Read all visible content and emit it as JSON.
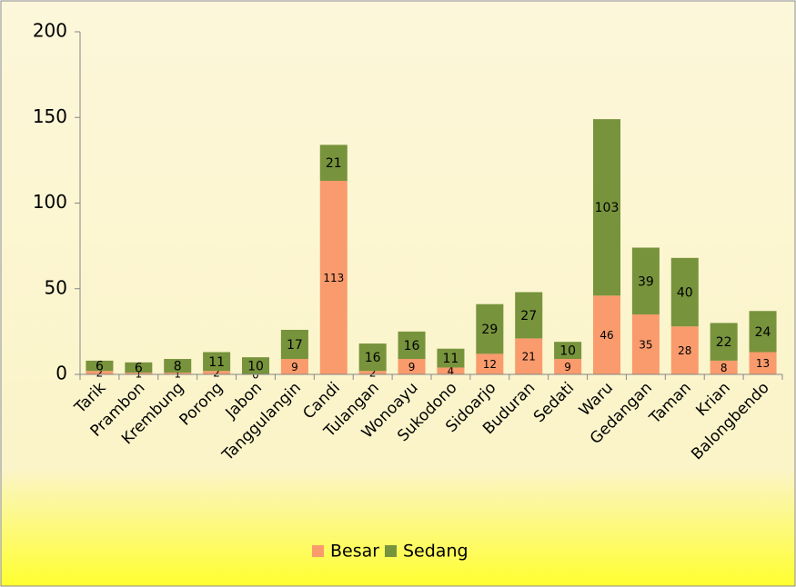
{
  "chart_data": {
    "type": "stacked_bar",
    "categories": [
      "Tarik",
      "Prambon",
      "Krembung",
      "Porong",
      "Jabon",
      "Tanggulangin",
      "Candi",
      "Tulangan",
      "Wonoayu",
      "Sukodono",
      "Sidoarjo",
      "Buduran",
      "Sedati",
      "Waru",
      "Gedangan",
      "Taman",
      "Krian",
      "Balongbendo"
    ],
    "series": [
      {
        "name": "Besar",
        "color": "#f99b6c",
        "values": [
          2,
          1,
          1,
          2,
          0,
          9,
          113,
          2,
          9,
          4,
          12,
          21,
          9,
          46,
          35,
          28,
          8,
          13
        ]
      },
      {
        "name": "Sedang",
        "color": "#77933c",
        "values": [
          6,
          6,
          8,
          11,
          10,
          17,
          21,
          16,
          16,
          11,
          29,
          27,
          10,
          103,
          39,
          40,
          22,
          24
        ]
      }
    ],
    "ylim": [
      0,
      200
    ],
    "yticks": [
      0,
      50,
      100,
      150,
      200
    ],
    "grid": false,
    "legend": "bottom"
  }
}
